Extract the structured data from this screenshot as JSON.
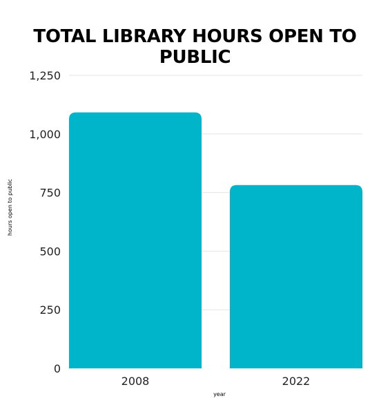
{
  "chart_data": {
    "type": "bar",
    "title": "TOTAL LIBRARY HOURS OPEN TO PUBLIC",
    "xlabel": "year",
    "ylabel": "hours open to public",
    "categories": [
      "2008",
      "2022"
    ],
    "values": [
      1092,
      782
    ],
    "ylim": [
      0,
      1250
    ],
    "yticks": [
      0,
      250,
      500,
      750,
      1000,
      1250
    ],
    "ytick_labels": [
      "0",
      "250",
      "500",
      "750",
      "1,000",
      "1,250"
    ],
    "grid": true,
    "legend": "none",
    "bar_color": "#00B5C9",
    "grid_color": "#E4E4E4"
  }
}
